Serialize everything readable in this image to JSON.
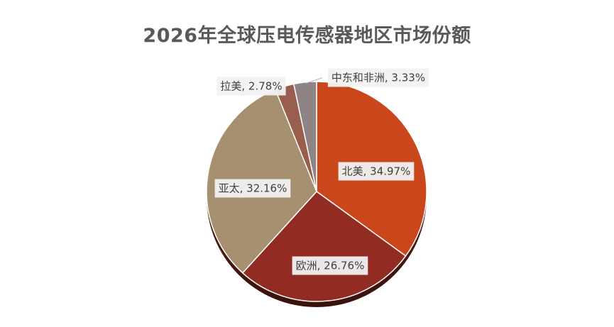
{
  "chart_data": {
    "type": "pie",
    "title": "2026年全球压电传感器地区市场份额",
    "categories": [
      "北美",
      "欧洲",
      "亚太",
      "拉美",
      "中东和非洲"
    ],
    "values": [
      34.97,
      26.76,
      32.16,
      2.78,
      3.33
    ],
    "unit": "%",
    "data_labels": [
      "北美, 34.97%",
      "欧洲, 26.76%",
      "亚太, 32.16%",
      "拉美, 2.78%",
      "中东和非洲, 3.33%"
    ],
    "colors": [
      "#C9471A",
      "#922B22",
      "#A69070",
      "#9A5E4E",
      "#8E8486"
    ],
    "start": "12 o'clock",
    "direction": "clockwise",
    "legend": "none"
  }
}
